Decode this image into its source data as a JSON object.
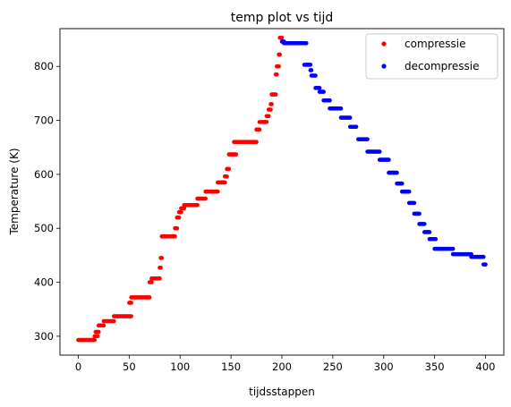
{
  "chart_data": {
    "type": "scatter",
    "title": "temp plot vs tijd",
    "xlabel": "tijdsstappen",
    "ylabel": "Temperature (K)",
    "xlim": [
      -18,
      418
    ],
    "ylim": [
      265,
      870
    ],
    "xticks": [
      0,
      50,
      100,
      150,
      200,
      250,
      300,
      350,
      400
    ],
    "yticks": [
      300,
      400,
      500,
      600,
      700,
      800
    ],
    "grid": false,
    "legend": "top-right",
    "series": [
      {
        "name": "compressie",
        "color": "#ff0000",
        "segments": [
          [
            0,
            16,
            293
          ],
          [
            16,
            19,
            300
          ],
          [
            17,
            20,
            308
          ],
          [
            20,
            25,
            320
          ],
          [
            25,
            35,
            328
          ],
          [
            35,
            52,
            337
          ],
          [
            50,
            52,
            362
          ],
          [
            52,
            70,
            372
          ],
          [
            70,
            72,
            400
          ],
          [
            72,
            80,
            407
          ],
          [
            80,
            81,
            427
          ],
          [
            81,
            82,
            445
          ],
          [
            82,
            95,
            485
          ],
          [
            95,
            97,
            500
          ],
          [
            97,
            99,
            520
          ],
          [
            99,
            101,
            530
          ],
          [
            101,
            104,
            537
          ],
          [
            104,
            117,
            543
          ],
          [
            117,
            125,
            555
          ],
          [
            125,
            137,
            568
          ],
          [
            137,
            144,
            585
          ],
          [
            144,
            146,
            596
          ],
          [
            146,
            148,
            610
          ],
          [
            148,
            155,
            637
          ],
          [
            153,
            175,
            660
          ],
          [
            175,
            178,
            683
          ],
          [
            178,
            185,
            697
          ],
          [
            185,
            187,
            708
          ],
          [
            187,
            189,
            720
          ],
          [
            189,
            190,
            730
          ],
          [
            190,
            194,
            748
          ],
          [
            194,
            195,
            785
          ],
          [
            195,
            197,
            800
          ],
          [
            197,
            198,
            822
          ],
          [
            198,
            200,
            853
          ]
        ]
      },
      {
        "name": "decompressie",
        "color": "#0000ff",
        "segments": [
          [
            200,
            202,
            846
          ],
          [
            202,
            224,
            843
          ],
          [
            222,
            228,
            803
          ],
          [
            228,
            229,
            793
          ],
          [
            229,
            233,
            783
          ],
          [
            233,
            237,
            760
          ],
          [
            237,
            241,
            753
          ],
          [
            241,
            247,
            737
          ],
          [
            247,
            258,
            722
          ],
          [
            258,
            267,
            705
          ],
          [
            267,
            273,
            688
          ],
          [
            275,
            284,
            665
          ],
          [
            284,
            296,
            642
          ],
          [
            296,
            305,
            627
          ],
          [
            305,
            313,
            603
          ],
          [
            313,
            318,
            583
          ],
          [
            318,
            325,
            568
          ],
          [
            325,
            330,
            547
          ],
          [
            330,
            335,
            527
          ],
          [
            335,
            340,
            508
          ],
          [
            340,
            345,
            493
          ],
          [
            345,
            351,
            480
          ],
          [
            350,
            368,
            462
          ],
          [
            368,
            386,
            452
          ],
          [
            386,
            398,
            447
          ],
          [
            398,
            400,
            433
          ]
        ]
      }
    ]
  }
}
